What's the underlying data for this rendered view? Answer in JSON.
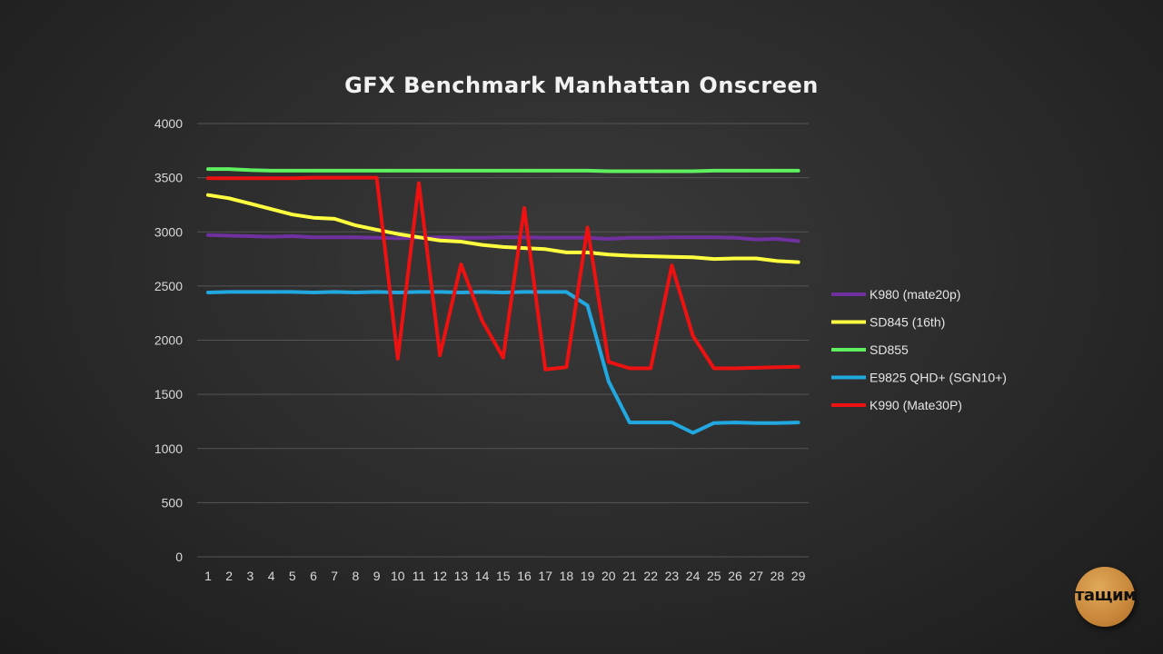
{
  "chart_data": {
    "type": "line",
    "title": "GFX Benchmark Manhattan Onscreen",
    "xlabel": "",
    "ylabel": "",
    "ylim": [
      0,
      4000
    ],
    "yticks": [
      0,
      500,
      1000,
      1500,
      2000,
      2500,
      3000,
      3500,
      4000
    ],
    "x": [
      1,
      2,
      3,
      4,
      5,
      6,
      7,
      8,
      9,
      10,
      11,
      12,
      13,
      14,
      15,
      16,
      17,
      18,
      19,
      20,
      21,
      22,
      23,
      24,
      25,
      26,
      27,
      28,
      29
    ],
    "grid": "horizontal",
    "legend_position": "right",
    "series": [
      {
        "name": "K980 (mate20p)",
        "color": "#7030a0",
        "values": [
          2970,
          2965,
          2960,
          2955,
          2960,
          2950,
          2950,
          2950,
          2945,
          2940,
          2945,
          2950,
          2945,
          2945,
          2950,
          2950,
          2945,
          2945,
          2945,
          2935,
          2945,
          2945,
          2950,
          2950,
          2950,
          2945,
          2930,
          2935,
          2915
        ]
      },
      {
        "name": "SD845 (16th)",
        "color": "#ffff40",
        "values": [
          3340,
          3310,
          3260,
          3210,
          3160,
          3130,
          3120,
          3060,
          3020,
          2980,
          2950,
          2920,
          2910,
          2880,
          2860,
          2850,
          2840,
          2810,
          2810,
          2790,
          2780,
          2775,
          2770,
          2765,
          2750,
          2755,
          2755,
          2730,
          2720
        ]
      },
      {
        "name": "SD855",
        "color": "#5ef05e",
        "values": [
          3580,
          3580,
          3570,
          3565,
          3565,
          3565,
          3565,
          3565,
          3565,
          3565,
          3565,
          3565,
          3565,
          3565,
          3565,
          3565,
          3565,
          3565,
          3565,
          3560,
          3560,
          3560,
          3560,
          3560,
          3565,
          3565,
          3565,
          3565,
          3565
        ]
      },
      {
        "name": "E9825 QHD+ (SGN10+)",
        "color": "#22a8e0",
        "values": [
          2440,
          2445,
          2445,
          2445,
          2445,
          2440,
          2445,
          2440,
          2445,
          2440,
          2445,
          2445,
          2440,
          2445,
          2440,
          2445,
          2445,
          2445,
          2320,
          1620,
          1240,
          1240,
          1240,
          1145,
          1235,
          1240,
          1235,
          1235,
          1240
        ]
      },
      {
        "name": "K990 (Mate30P)",
        "color": "#ee1111",
        "values": [
          3495,
          3495,
          3495,
          3495,
          3495,
          3500,
          3500,
          3500,
          3500,
          1830,
          3450,
          1860,
          2700,
          2180,
          1840,
          3220,
          1730,
          1750,
          3040,
          1800,
          1740,
          1740,
          2690,
          2040,
          1740,
          1740,
          1745,
          1750,
          1755
        ]
      }
    ]
  },
  "logo": {
    "text": "тащим"
  }
}
